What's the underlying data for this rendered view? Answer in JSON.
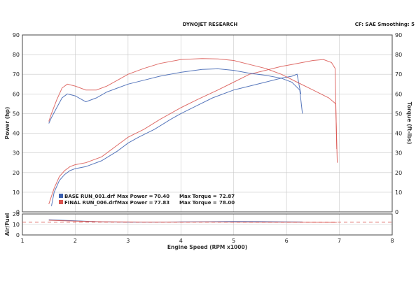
{
  "header": {
    "title": "DYNOJET RESEARCH",
    "settings": "CF: SAE   Smoothing: 5"
  },
  "chart_data": [
    {
      "type": "line",
      "title": "DYNOJET RESEARCH",
      "xlabel": "Engine Speed (RPM x1000)",
      "ylabel": "Power (hp)",
      "ylabel_right": "Torque (ft-lbs)",
      "xlim": [
        1,
        8
      ],
      "ylim": [
        0,
        90
      ],
      "ylim_right": [
        0,
        90
      ],
      "x_ticks": [
        "1",
        "2",
        "3",
        "4",
        "5",
        "6",
        "7",
        "8"
      ],
      "y_ticks": [
        "0",
        "10",
        "20",
        "30",
        "40",
        "50",
        "60",
        "70",
        "80",
        "90"
      ],
      "y_ticks_right": [
        "0",
        "10",
        "20",
        "30",
        "40",
        "50",
        "60",
        "70",
        "80",
        "90"
      ],
      "grid": true,
      "legend": [
        {
          "run": "BASE RUN_001.drf",
          "max_power_label": "Max Power =",
          "max_power": "70.40",
          "max_torque_label": "Max Torque =",
          "max_torque": "72.87",
          "color": "#3a5fb0"
        },
        {
          "run": "FINAL RUN_006.drf",
          "max_power_label": "Max Power =",
          "max_power": "77.83",
          "max_torque_label": "Max Torque =",
          "max_torque": "78.00",
          "color": "#d9534f"
        }
      ],
      "series": [
        {
          "measure": "power",
          "run": "BASE RUN_001.drf",
          "color": "#3a5fb0",
          "x": [
            1.55,
            1.6,
            1.7,
            1.8,
            1.9,
            2.0,
            2.2,
            2.5,
            2.8,
            3.0,
            3.2,
            3.5,
            3.8,
            4.0,
            4.3,
            4.6,
            5.0,
            5.3,
            5.6,
            5.9,
            6.1,
            6.2,
            6.27
          ],
          "y": [
            3,
            10,
            16,
            19,
            21,
            22,
            23,
            26,
            31,
            35,
            38,
            42,
            47,
            50,
            54,
            58,
            62,
            64,
            66,
            68,
            69,
            70,
            60
          ]
        },
        {
          "measure": "power",
          "run": "FINAL RUN_006.drf",
          "color": "#d9534f",
          "x": [
            1.5,
            1.6,
            1.7,
            1.8,
            1.9,
            2.0,
            2.2,
            2.5,
            2.8,
            3.0,
            3.3,
            3.6,
            4.0,
            4.3,
            4.7,
            5.0,
            5.3,
            5.6,
            5.9,
            6.1,
            6.3,
            6.5,
            6.7,
            6.85,
            6.92,
            6.95
          ],
          "y": [
            4,
            12,
            18,
            21,
            23,
            24,
            25,
            28,
            34,
            38,
            42,
            47,
            53,
            57,
            62,
            66,
            70,
            72,
            74,
            75,
            76,
            77,
            77.5,
            76,
            73,
            32
          ]
        },
        {
          "measure": "torque",
          "run": "BASE RUN_001.drf",
          "color": "#3a5fb0",
          "x": [
            1.5,
            1.55,
            1.65,
            1.75,
            1.85,
            2.0,
            2.2,
            2.4,
            2.6,
            2.8,
            3.0,
            3.3,
            3.6,
            4.0,
            4.4,
            4.7,
            5.0,
            5.3,
            5.6,
            5.9,
            6.1,
            6.25,
            6.3
          ],
          "y": [
            45,
            48,
            53,
            58,
            60,
            59,
            56,
            58,
            61,
            63,
            65,
            67,
            69,
            71,
            72.5,
            72.8,
            72,
            70.5,
            69.5,
            68,
            66,
            62,
            50
          ]
        },
        {
          "measure": "torque",
          "run": "FINAL RUN_006.drf",
          "color": "#d9534f",
          "x": [
            1.5,
            1.55,
            1.65,
            1.75,
            1.85,
            2.0,
            2.2,
            2.4,
            2.6,
            2.8,
            3.0,
            3.3,
            3.6,
            4.0,
            4.4,
            4.7,
            5.0,
            5.3,
            5.6,
            5.9,
            6.2,
            6.5,
            6.8,
            6.93,
            6.96
          ],
          "y": [
            46,
            50,
            57,
            63,
            65,
            64,
            62,
            62,
            64,
            67,
            70,
            73,
            75.5,
            77.5,
            78,
            77.8,
            77,
            75,
            73,
            70,
            66,
            62,
            58,
            55,
            25
          ]
        }
      ]
    },
    {
      "type": "line",
      "ylabel": "Air/Fuel",
      "xlim": [
        1,
        8
      ],
      "ylim": [
        0,
        20
      ],
      "y_ticks": [
        "0",
        "10",
        "20"
      ],
      "series": [
        {
          "run": "BASE RUN_001.drf",
          "color": "#3a5fb0",
          "x": [
            1.5,
            2.0,
            2.5,
            3.0,
            3.5,
            4.0,
            4.5,
            5.0,
            5.5,
            6.0,
            6.3
          ],
          "y": [
            14.5,
            13.5,
            12.5,
            12.2,
            12.3,
            12.5,
            12.6,
            12.8,
            12.7,
            12.5,
            12.4
          ]
        },
        {
          "run": "FINAL RUN_006.drf",
          "color": "#d9534f",
          "x": [
            1.5,
            2.0,
            2.5,
            3.0,
            3.5,
            4.0,
            4.5,
            5.0,
            5.5,
            6.0,
            6.5,
            6.95
          ],
          "y": [
            14,
            13.2,
            12.6,
            12.4,
            12.3,
            12.3,
            12.4,
            12.3,
            12.2,
            12.2,
            12.1,
            12.0
          ]
        },
        {
          "run": "FINAL RUN_006.drf",
          "style": "dashed",
          "color": "#d9534f",
          "x": [
            1,
            8
          ],
          "y": [
            12.2,
            12.2
          ]
        }
      ]
    }
  ]
}
